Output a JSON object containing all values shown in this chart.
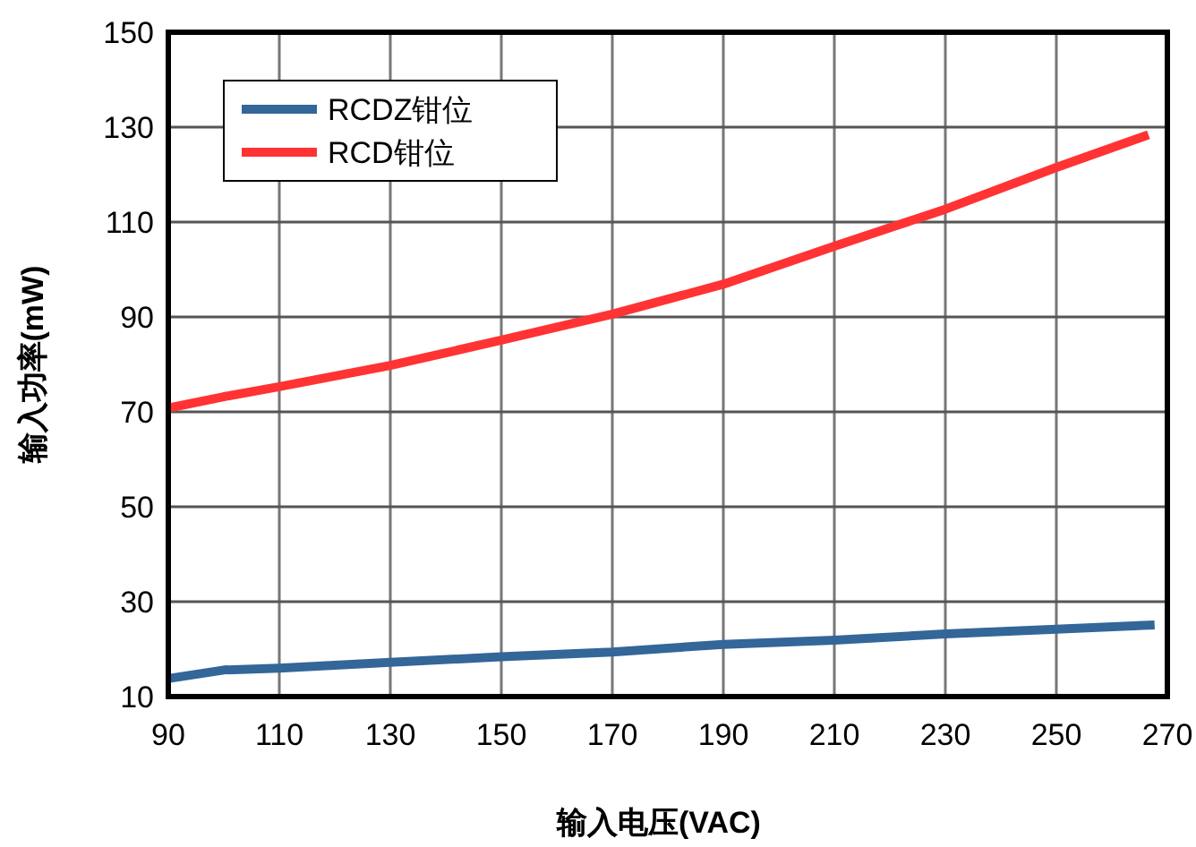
{
  "chart_data": {
    "type": "line",
    "xlabel": "输入电压(VAC)",
    "ylabel": "输入功率(mW)",
    "xlim": [
      90,
      270
    ],
    "xticks": [
      90,
      110,
      130,
      150,
      170,
      190,
      210,
      230,
      250,
      270
    ],
    "ylim": [
      10,
      150
    ],
    "yticks": [
      10,
      30,
      50,
      70,
      90,
      110,
      130,
      150
    ],
    "grid": true,
    "legend": "top left",
    "marker": "none",
    "line_style": "solid",
    "series": [
      {
        "name": "RCDZ钳位",
        "color": "#336699",
        "x": [
          90,
          100,
          110,
          130,
          150,
          170,
          190,
          210,
          230,
          250,
          267.7
        ],
        "values": [
          13.8,
          15.6,
          16,
          17.2,
          18.4,
          19.4,
          21,
          21.9,
          23.2,
          24.2,
          25.1
        ]
      },
      {
        "name": "RCD钳位",
        "color": "#ff3333",
        "x": [
          90,
          100,
          110,
          130,
          150,
          170,
          190,
          210,
          230,
          250,
          266.6
        ],
        "values": [
          70.8,
          73.2,
          75.3,
          79.8,
          85.1,
          90.6,
          96.9,
          104.9,
          112.7,
          121.5,
          128.4
        ]
      }
    ]
  }
}
